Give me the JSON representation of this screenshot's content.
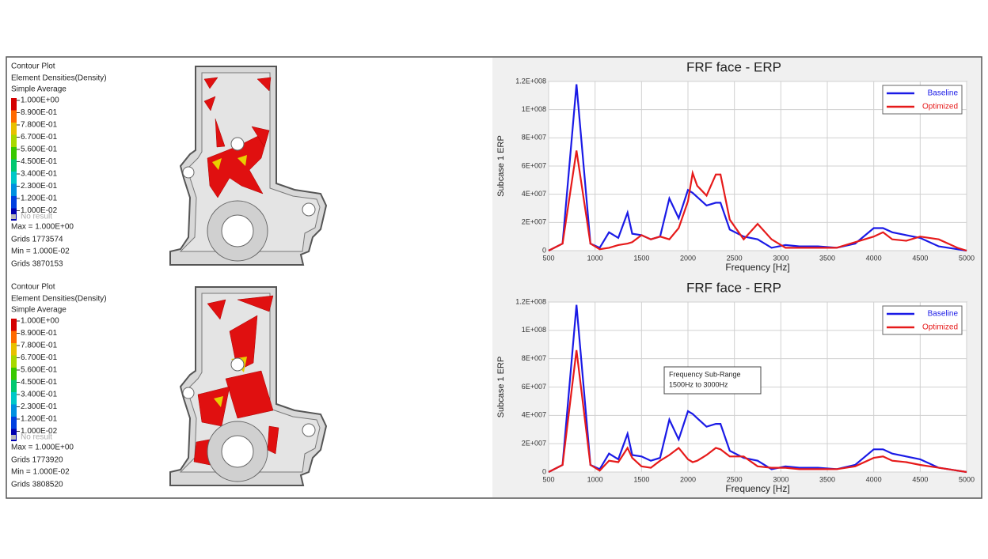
{
  "contours": [
    {
      "title": "Contour Plot",
      "subtitle": "Element Densities(Density)",
      "method": "Simple Average",
      "legend": [
        {
          "label": "1.000E+00",
          "color": "#d40000"
        },
        {
          "label": "8.900E-01",
          "color": "#ff6a00"
        },
        {
          "label": "7.800E-01",
          "color": "#e8c000"
        },
        {
          "label": "6.700E-01",
          "color": "#a8d800"
        },
        {
          "label": "5.600E-01",
          "color": "#38c800"
        },
        {
          "label": "4.500E-01",
          "color": "#00c870"
        },
        {
          "label": "3.400E-01",
          "color": "#00c8c8"
        },
        {
          "label": "2.300E-01",
          "color": "#0090e0"
        },
        {
          "label": "1.200E-01",
          "color": "#0040e0"
        },
        {
          "label": "1.000E-02",
          "color": "#0000b0"
        }
      ],
      "no_result": "No result",
      "max": "Max = 1.000E+00",
      "max_grid": "Grids 1773574",
      "min": "Min = 1.000E-02",
      "min_grid": "Grids 3870153"
    },
    {
      "title": "Contour Plot",
      "subtitle": "Element Densities(Density)",
      "method": "Simple Average",
      "legend": [
        {
          "label": "1.000E+00",
          "color": "#d40000"
        },
        {
          "label": "8.900E-01",
          "color": "#ff6a00"
        },
        {
          "label": "7.800E-01",
          "color": "#e8c000"
        },
        {
          "label": "6.700E-01",
          "color": "#a8d800"
        },
        {
          "label": "5.600E-01",
          "color": "#38c800"
        },
        {
          "label": "4.500E-01",
          "color": "#00c870"
        },
        {
          "label": "3.400E-01",
          "color": "#00c8c8"
        },
        {
          "label": "2.300E-01",
          "color": "#0090e0"
        },
        {
          "label": "1.200E-01",
          "color": "#0040e0"
        },
        {
          "label": "1.000E-02",
          "color": "#0000b0"
        }
      ],
      "no_result": "No result",
      "max": "Max = 1.000E+00",
      "max_grid": "Grids 1773920",
      "min": "Min = 1.000E-02",
      "min_grid": "Grids 3808520"
    }
  ],
  "chart_data": [
    {
      "type": "line",
      "title": "FRF face - ERP",
      "x_label": "Frequency [Hz]",
      "y_label": "Subcase 1 ERP",
      "x": [
        500,
        650,
        800,
        950,
        1050,
        1150,
        1250,
        1350,
        1400,
        1500,
        1600,
        1700,
        1800,
        1900,
        2000,
        2050,
        2100,
        2200,
        2300,
        2350,
        2450,
        2600,
        2750,
        2900,
        3050,
        3200,
        3400,
        3600,
        3800,
        4000,
        4100,
        4200,
        4350,
        4500,
        4700,
        4900,
        5000
      ],
      "series": [
        {
          "name": "Baseline",
          "color": "#1a1ae6",
          "values": [
            0,
            5000000,
            118000000,
            5000000,
            2000000,
            13000000,
            9000000,
            27000000,
            12000000,
            11000000,
            8000000,
            10000000,
            37000000,
            23000000,
            43000000,
            41000000,
            38000000,
            32000000,
            34000000,
            34000000,
            15000000,
            10000000,
            8000000,
            2000000,
            4000000,
            3000000,
            3000000,
            2000000,
            5000000,
            16000000,
            16000000,
            13000000,
            11000000,
            9000000,
            3000000,
            1000000,
            0
          ]
        },
        {
          "name": "Optimized",
          "color": "#e61a1a",
          "values": [
            0,
            5000000,
            71000000,
            5000000,
            1000000,
            2000000,
            4000000,
            5000000,
            6000000,
            11000000,
            8000000,
            10000000,
            8000000,
            16000000,
            35000000,
            55000000,
            46000000,
            39000000,
            54000000,
            54000000,
            22000000,
            8000000,
            19000000,
            8000000,
            2000000,
            2000000,
            2000000,
            2000000,
            6000000,
            10000000,
            13000000,
            8000000,
            7000000,
            10000000,
            8000000,
            2000000,
            0
          ]
        }
      ],
      "xlim": [
        500,
        5000
      ],
      "xticks": [
        500,
        1000,
        1500,
        2000,
        2500,
        3000,
        3500,
        4000,
        4500,
        5000
      ],
      "ylim": [
        0,
        120000000
      ],
      "yticks": [
        0,
        {
          "value": 20000000,
          "label": "2E+007"
        },
        {
          "value": 40000000,
          "label": "4E+007"
        },
        {
          "value": 60000000,
          "label": "6E+007"
        },
        {
          "value": 80000000,
          "label": "8E+007"
        },
        {
          "value": 100000000,
          "label": "1E+008"
        },
        {
          "value": 120000000,
          "label": "1.2E+008"
        }
      ],
      "grid": true,
      "legend_position": "upper right"
    },
    {
      "type": "line",
      "title": "FRF face - ERP",
      "x_label": "Frequency [Hz]",
      "y_label": "Subcase 1 ERP",
      "annotation": [
        "Frequency Sub-Range",
        "1500Hz to 3000Hz"
      ],
      "x": [
        500,
        650,
        800,
        950,
        1050,
        1150,
        1250,
        1350,
        1400,
        1500,
        1600,
        1700,
        1800,
        1900,
        2000,
        2050,
        2100,
        2200,
        2300,
        2350,
        2450,
        2600,
        2750,
        2900,
        3050,
        3200,
        3400,
        3600,
        3800,
        4000,
        4100,
        4200,
        4350,
        4500,
        4700,
        4900,
        5000
      ],
      "series": [
        {
          "name": "Baseline",
          "color": "#1a1ae6",
          "values": [
            0,
            5000000,
            118000000,
            5000000,
            2000000,
            13000000,
            9000000,
            27000000,
            12000000,
            11000000,
            8000000,
            10000000,
            37000000,
            23000000,
            43000000,
            41000000,
            38000000,
            32000000,
            34000000,
            34000000,
            15000000,
            10000000,
            8000000,
            2000000,
            4000000,
            3000000,
            3000000,
            2000000,
            5000000,
            16000000,
            16000000,
            13000000,
            11000000,
            9000000,
            3000000,
            1000000,
            0
          ]
        },
        {
          "name": "Optimized",
          "color": "#e61a1a",
          "values": [
            0,
            5000000,
            86000000,
            5000000,
            1000000,
            8000000,
            7000000,
            17000000,
            10000000,
            4000000,
            3000000,
            8000000,
            12000000,
            17000000,
            9000000,
            7000000,
            8000000,
            12000000,
            17000000,
            16000000,
            11000000,
            11000000,
            4000000,
            3000000,
            3000000,
            2000000,
            2000000,
            2000000,
            4000000,
            10000000,
            11000000,
            8000000,
            7000000,
            5000000,
            3000000,
            1000000,
            0
          ]
        }
      ],
      "xlim": [
        500,
        5000
      ],
      "xticks": [
        500,
        1000,
        1500,
        2000,
        2500,
        3000,
        3500,
        4000,
        4500,
        5000
      ],
      "ylim": [
        0,
        120000000
      ],
      "yticks": [
        0,
        {
          "value": 20000000,
          "label": "2E+007"
        },
        {
          "value": 40000000,
          "label": "4E+007"
        },
        {
          "value": 60000000,
          "label": "6E+007"
        },
        {
          "value": 80000000,
          "label": "8E+007"
        },
        {
          "value": 100000000,
          "label": "1E+008"
        },
        {
          "value": 120000000,
          "label": "1.2E+008"
        }
      ],
      "grid": true,
      "legend_position": "upper right"
    }
  ]
}
